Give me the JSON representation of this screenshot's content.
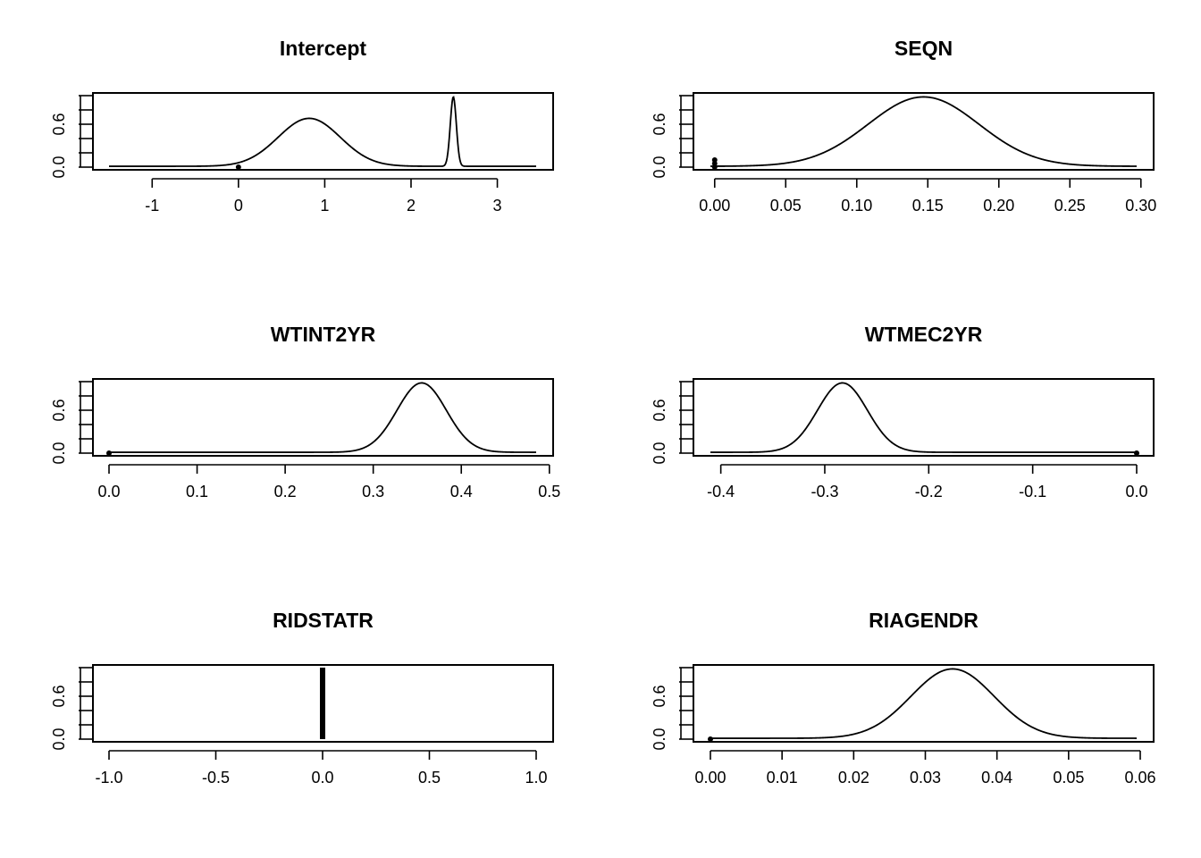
{
  "figure": {
    "background": "#ffffff",
    "line_color": "#000000"
  },
  "chart_data": [
    {
      "type": "line",
      "title": "Intercept",
      "xlim": [
        -1.5,
        3.45
      ],
      "ylim": [
        0,
        1
      ],
      "x_ticks": [
        -1,
        0,
        1,
        2,
        3
      ],
      "x_tick_labels": [
        "-1",
        "0",
        "1",
        "2",
        "3"
      ],
      "y_ticks": [
        0,
        0.2,
        0.4,
        0.6,
        0.8,
        1.0
      ],
      "y_tick_labels": [
        "0.0",
        "0.6"
      ],
      "curve": {
        "x_range": [
          -1.5,
          3.45
        ],
        "components": [
          {
            "mean": 0.82,
            "sd": 0.36,
            "height": 0.67
          },
          {
            "mean": 2.49,
            "sd": 0.035,
            "height": 0.97
          }
        ]
      },
      "point_masses": [
        {
          "x": 0.0,
          "y": 0.0
        }
      ]
    },
    {
      "type": "line",
      "title": "SEQN",
      "xlim": [
        -0.003,
        0.297
      ],
      "ylim": [
        0,
        1
      ],
      "x_ticks": [
        0,
        0.05,
        0.1,
        0.15,
        0.2,
        0.25,
        0.3
      ],
      "x_tick_labels": [
        "0.00",
        "0.05",
        "0.10",
        "0.15",
        "0.20",
        "0.25",
        "0.30"
      ],
      "y_ticks": [
        0,
        0.2,
        0.4,
        0.6,
        0.8,
        1.0
      ],
      "y_tick_labels": [
        "0.0",
        "0.6"
      ],
      "curve": {
        "x_range": [
          -0.003,
          0.297
        ],
        "components": [
          {
            "mean": 0.147,
            "sd": 0.039,
            "height": 0.97
          }
        ]
      },
      "point_masses": [
        {
          "x": 0.0,
          "y": 0.0
        },
        {
          "x": 0.0,
          "y": 0.05
        },
        {
          "x": 0.0,
          "y": 0.1
        }
      ]
    },
    {
      "type": "line",
      "title": "WTINT2YR",
      "xlim": [
        0.0,
        0.485
      ],
      "ylim": [
        0,
        1
      ],
      "x_ticks": [
        0,
        0.1,
        0.2,
        0.3,
        0.4,
        0.5
      ],
      "x_tick_labels": [
        "0.0",
        "0.1",
        "0.2",
        "0.3",
        "0.4",
        "0.5"
      ],
      "y_ticks": [
        0,
        0.2,
        0.4,
        0.6,
        0.8,
        1.0
      ],
      "y_tick_labels": [
        "0.0",
        "0.6"
      ],
      "curve": {
        "x_range": [
          0.0,
          0.485
        ],
        "components": [
          {
            "mean": 0.355,
            "sd": 0.028,
            "height": 0.97
          }
        ]
      },
      "point_masses": [
        {
          "x": 0.0,
          "y": 0.0
        }
      ]
    },
    {
      "type": "line",
      "title": "WTMEC2YR",
      "xlim": [
        -0.41,
        0.0
      ],
      "ylim": [
        0,
        1
      ],
      "x_ticks": [
        -0.4,
        -0.3,
        -0.2,
        -0.1,
        0
      ],
      "x_tick_labels": [
        "-0.4",
        "-0.3",
        "-0.2",
        "-0.1",
        "0.0"
      ],
      "y_ticks": [
        0,
        0.2,
        0.4,
        0.6,
        0.8,
        1.0
      ],
      "y_tick_labels": [
        "0.0",
        "0.6"
      ],
      "curve": {
        "x_range": [
          -0.41,
          0.0
        ],
        "components": [
          {
            "mean": -0.283,
            "sd": 0.024,
            "height": 0.97
          }
        ]
      },
      "point_masses": [
        {
          "x": 0.0,
          "y": 0.0
        }
      ]
    },
    {
      "type": "line",
      "title": "RIDSTATR",
      "xlim": [
        -1.0,
        1.0
      ],
      "ylim": [
        0,
        1
      ],
      "x_ticks": [
        -1,
        -0.5,
        0,
        0.5,
        1
      ],
      "x_tick_labels": [
        "-1.0",
        "-0.5",
        "0.0",
        "0.5",
        "1.0"
      ],
      "y_ticks": [
        0,
        0.2,
        0.4,
        0.6,
        0.8,
        1.0
      ],
      "y_tick_labels": [
        "0.0",
        "0.6"
      ],
      "spike": {
        "x": 0.0,
        "y": 1.0
      },
      "point_masses": []
    },
    {
      "type": "line",
      "title": "RIAGENDR",
      "xlim": [
        0.0,
        0.0595
      ],
      "ylim": [
        0,
        1
      ],
      "x_ticks": [
        0,
        0.01,
        0.02,
        0.03,
        0.04,
        0.05,
        0.06
      ],
      "x_tick_labels": [
        "0.00",
        "0.01",
        "0.02",
        "0.03",
        "0.04",
        "0.05",
        "0.06"
      ],
      "y_ticks": [
        0,
        0.2,
        0.4,
        0.6,
        0.8,
        1.0
      ],
      "y_tick_labels": [
        "0.0",
        "0.6"
      ],
      "curve": {
        "x_range": [
          0.0,
          0.0595
        ],
        "components": [
          {
            "mean": 0.0338,
            "sd": 0.0058,
            "height": 0.97
          }
        ]
      },
      "point_masses": [
        {
          "x": 0.0,
          "y": 0.0
        }
      ]
    }
  ]
}
